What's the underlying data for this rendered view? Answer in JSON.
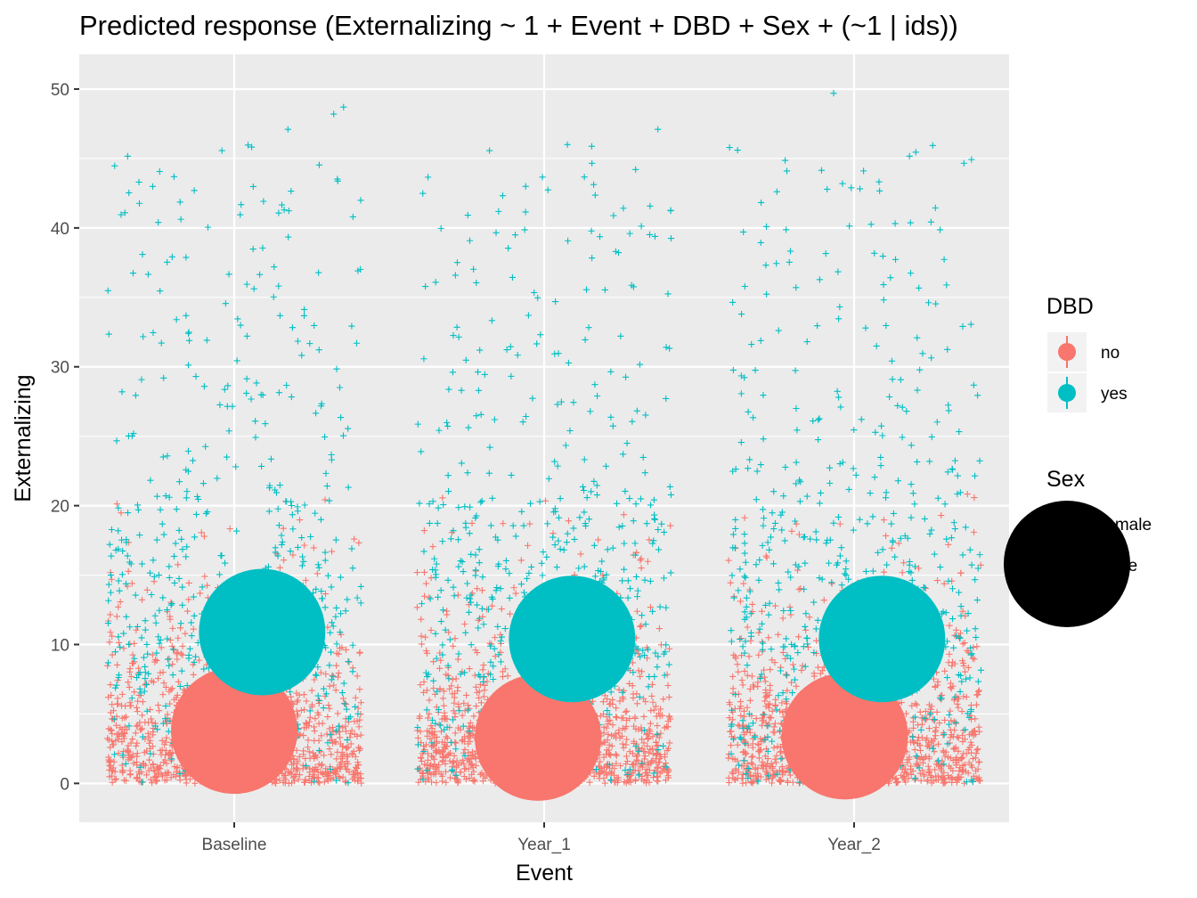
{
  "chart_data": {
    "type": "scatter",
    "title": "Predicted response (Externalizing ~ 1 + Event + DBD + Sex + (~1 | ids))",
    "xlabel": "Event",
    "ylabel": "Externalizing",
    "categories": [
      "Baseline",
      "Year_1",
      "Year_2"
    ],
    "ylim": [
      -2.8,
      52.5
    ],
    "yticks": [
      0,
      10,
      20,
      30,
      40,
      50
    ],
    "grid": true,
    "legend_placement": "right",
    "legends": [
      {
        "title": "DBD",
        "entries": [
          {
            "label": "no",
            "color": "#F8766D"
          },
          {
            "label": "yes",
            "color": "#00BFC4"
          }
        ]
      },
      {
        "title": "Sex",
        "entries": [
          {
            "label": "female",
            "color": "#000000"
          },
          {
            "label": "male",
            "color": "#000000"
          }
        ]
      }
    ],
    "series": [
      {
        "name": "no",
        "color": "#F8766D",
        "predicted": [
          {
            "event": "Baseline",
            "offset": 0.0,
            "y": 3.8,
            "sex": "female"
          },
          {
            "event": "Year_1",
            "offset": -0.02,
            "y": 3.3,
            "sex": "male"
          },
          {
            "event": "Year_2",
            "offset": -0.03,
            "y": 3.4,
            "sex": "male"
          }
        ]
      },
      {
        "name": "yes",
        "color": "#00BFC4",
        "predicted": [
          {
            "event": "Baseline",
            "offset": 0.09,
            "y": 10.9,
            "sex": "female"
          },
          {
            "event": "Year_1",
            "offset": 0.09,
            "y": 10.4,
            "sex": "female"
          },
          {
            "event": "Year_2",
            "offset": 0.09,
            "y": 10.4,
            "sex": "female"
          }
        ]
      }
    ],
    "raw_points": {
      "jitter_width": 0.41,
      "no": {
        "count_per_event": 1100,
        "range": [
          0,
          21
        ]
      },
      "yes": {
        "count_per_event": 520,
        "range": [
          0,
          49.7
        ]
      },
      "highlights": [
        {
          "event": "Baseline",
          "y": 48.7
        },
        {
          "event": "Baseline",
          "y": 48.2
        },
        {
          "event": "Baseline",
          "y": 47.1
        },
        {
          "event": "Year_1",
          "y": 47.1
        },
        {
          "event": "Year_1",
          "y": 46.0
        },
        {
          "event": "Year_2",
          "y": 49.7
        },
        {
          "event": "Year_2",
          "y": 45.6
        }
      ]
    }
  }
}
